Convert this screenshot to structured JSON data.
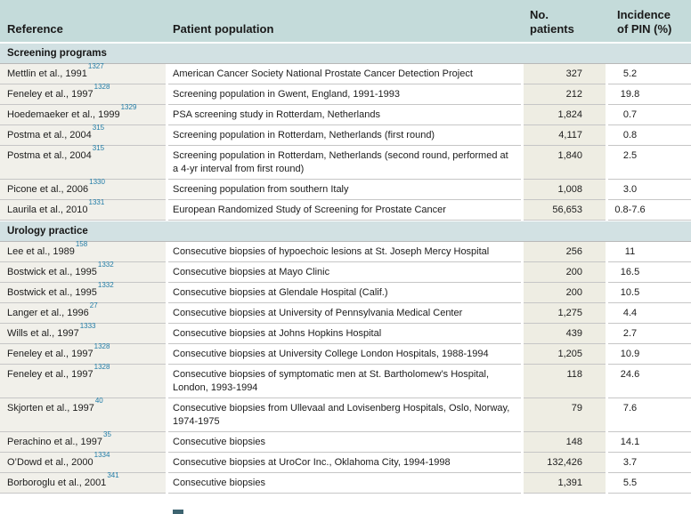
{
  "table": {
    "header": {
      "reference": "Reference",
      "population": "Patient population",
      "patients": "No.\npatients",
      "incidence": "Incidence\nof PIN (%)"
    },
    "sections": [
      {
        "label": "Screening programs",
        "rows": [
          {
            "ref": "Mettlin et al., 1991",
            "sup": "1327",
            "population": "American Cancer Society National Prostate Cancer Detection Project",
            "patients": "327",
            "incidence": "5.2"
          },
          {
            "ref": "Feneley et al., 1997",
            "sup": "1328",
            "population": "Screening population in Gwent, England, 1991-1993",
            "patients": "212",
            "incidence": "19.8"
          },
          {
            "ref": "Hoedemaeker et al., 1999",
            "sup": "1329",
            "population": "PSA screening study in Rotterdam, Netherlands",
            "patients": "1,824",
            "incidence": "0.7"
          },
          {
            "ref": "Postma et al., 2004",
            "sup": "315",
            "population": "Screening population in Rotterdam, Netherlands (first round)",
            "patients": "4,117",
            "incidence": "0.8"
          },
          {
            "ref": "Postma et al., 2004",
            "sup": "315",
            "population": "Screening population in Rotterdam, Netherlands (second round, performed at a 4-yr interval from first round)",
            "patients": "1,840",
            "incidence": "2.5"
          },
          {
            "ref": "Picone et al., 2006",
            "sup": "1330",
            "population": "Screening population from southern Italy",
            "patients": "1,008",
            "incidence": "3.0"
          },
          {
            "ref": "Laurila et al., 2010",
            "sup": "1331",
            "population": "European Randomized Study of Screening for Prostate Cancer",
            "patients": "56,653",
            "incidence": "0.8-7.6"
          }
        ]
      },
      {
        "label": "Urology practice",
        "rows": [
          {
            "ref": "Lee et al., 1989",
            "sup": "158",
            "population": "Consecutive biopsies of hypoechoic lesions at St. Joseph Mercy Hospital",
            "patients": "256",
            "incidence": "11"
          },
          {
            "ref": "Bostwick et al., 1995",
            "sup": "1332",
            "population": "Consecutive biopsies at Mayo Clinic",
            "patients": "200",
            "incidence": "16.5"
          },
          {
            "ref": "Bostwick et al., 1995",
            "sup": "1332",
            "population": "Consecutive biopsies at Glendale Hospital (Calif.)",
            "patients": "200",
            "incidence": "10.5"
          },
          {
            "ref": "Langer et al., 1996",
            "sup": "27",
            "population": "Consecutive biopsies at University of Pennsylvania Medical Center",
            "patients": "1,275",
            "incidence": "4.4"
          },
          {
            "ref": "Wills et al., 1997",
            "sup": "1333",
            "population": "Consecutive biopsies at Johns Hopkins Hospital",
            "patients": "439",
            "incidence": "2.7"
          },
          {
            "ref": "Feneley et al., 1997",
            "sup": "1328",
            "population": "Consecutive biopsies at University College London Hospitals, 1988-1994",
            "patients": "1,205",
            "incidence": "10.9"
          },
          {
            "ref": "Feneley et al., 1997",
            "sup": "1328",
            "population": "Consecutive biopsies of symptomatic men at St. Bartholomew’s Hospital, London, 1993-1994",
            "patients": "118",
            "incidence": "24.6"
          },
          {
            "ref": "Skjorten et al., 1997",
            "sup": "40",
            "population": "Consecutive biopsies from Ullevaal and Lovisenberg Hospitals, Oslo, Norway, 1974-1975",
            "patients": "79",
            "incidence": "7.6"
          },
          {
            "ref": "Perachino et al., 1997",
            "sup": "35",
            "population": "Consecutive biopsies",
            "patients": "148",
            "incidence": "14.1"
          },
          {
            "ref": "O’Dowd et al., 2000",
            "sup": "1334",
            "population": "Consecutive biopsies at UroCor Inc., Oklahoma City, 1994-1998",
            "patients": "132,426",
            "incidence": "3.7"
          },
          {
            "ref": "Borboroglu et al., 2001",
            "sup": "341",
            "population": "Consecutive biopsies",
            "patients": "1,391",
            "incidence": "5.5"
          }
        ]
      }
    ]
  },
  "colors": {
    "header_bg": "#c4dbda",
    "section_bg": "#d2e1e3",
    "reference_col_bg": "#f1f0ea",
    "patients_col_bg": "#eeede3",
    "citation_color": "#1f7ba6",
    "row_divider": "#c6c6c6",
    "text": "#1c1c1c"
  }
}
